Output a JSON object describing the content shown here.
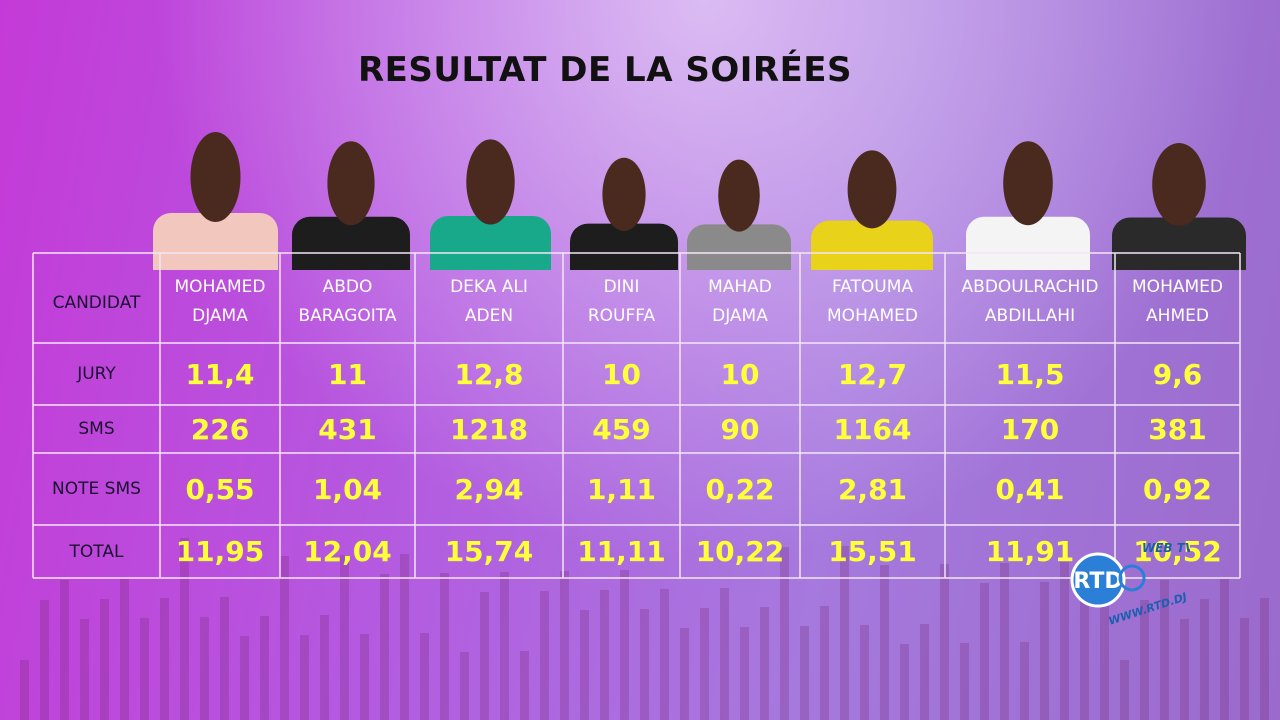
{
  "title": "RESULTAT DE LA SOIRÉES",
  "table": {
    "corner": "CANDIDAT",
    "candidates": [
      [
        "MOHAMED",
        "DJAMA"
      ],
      [
        "ABDO",
        "BARAGOITA"
      ],
      [
        "DEKA ALI",
        "ADEN"
      ],
      [
        "DINI",
        "ROUFFA"
      ],
      [
        "MAHAD",
        "DJAMA"
      ],
      [
        "FATOUMA",
        "MOHAMED"
      ],
      [
        "ABDOULRACHID",
        "ABDILLAHI"
      ],
      [
        "MOHAMED",
        "AHMED"
      ]
    ],
    "rows": [
      {
        "label": "JURY",
        "values": [
          "11,4",
          "11",
          "12,8",
          "10",
          "10",
          "12,7",
          "11,5",
          "9,6"
        ]
      },
      {
        "label": "SMS",
        "values": [
          "226",
          "431",
          "1218",
          "459",
          "90",
          "1164",
          "170",
          "381"
        ]
      },
      {
        "label": "NOTE SMS",
        "values": [
          "0,55",
          "1,04",
          "2,94",
          "1,11",
          "0,22",
          "2,81",
          "0,41",
          "0,92"
        ]
      },
      {
        "label": "TOTAL",
        "values": [
          "11,95",
          "12,04",
          "15,74",
          "11,11",
          "10,22",
          "15,51",
          "11,91",
          "10,52"
        ]
      }
    ]
  },
  "logo": {
    "top": "WEB TV",
    "mark": "RTD",
    "url": "WWW.RTD.DJ"
  }
}
